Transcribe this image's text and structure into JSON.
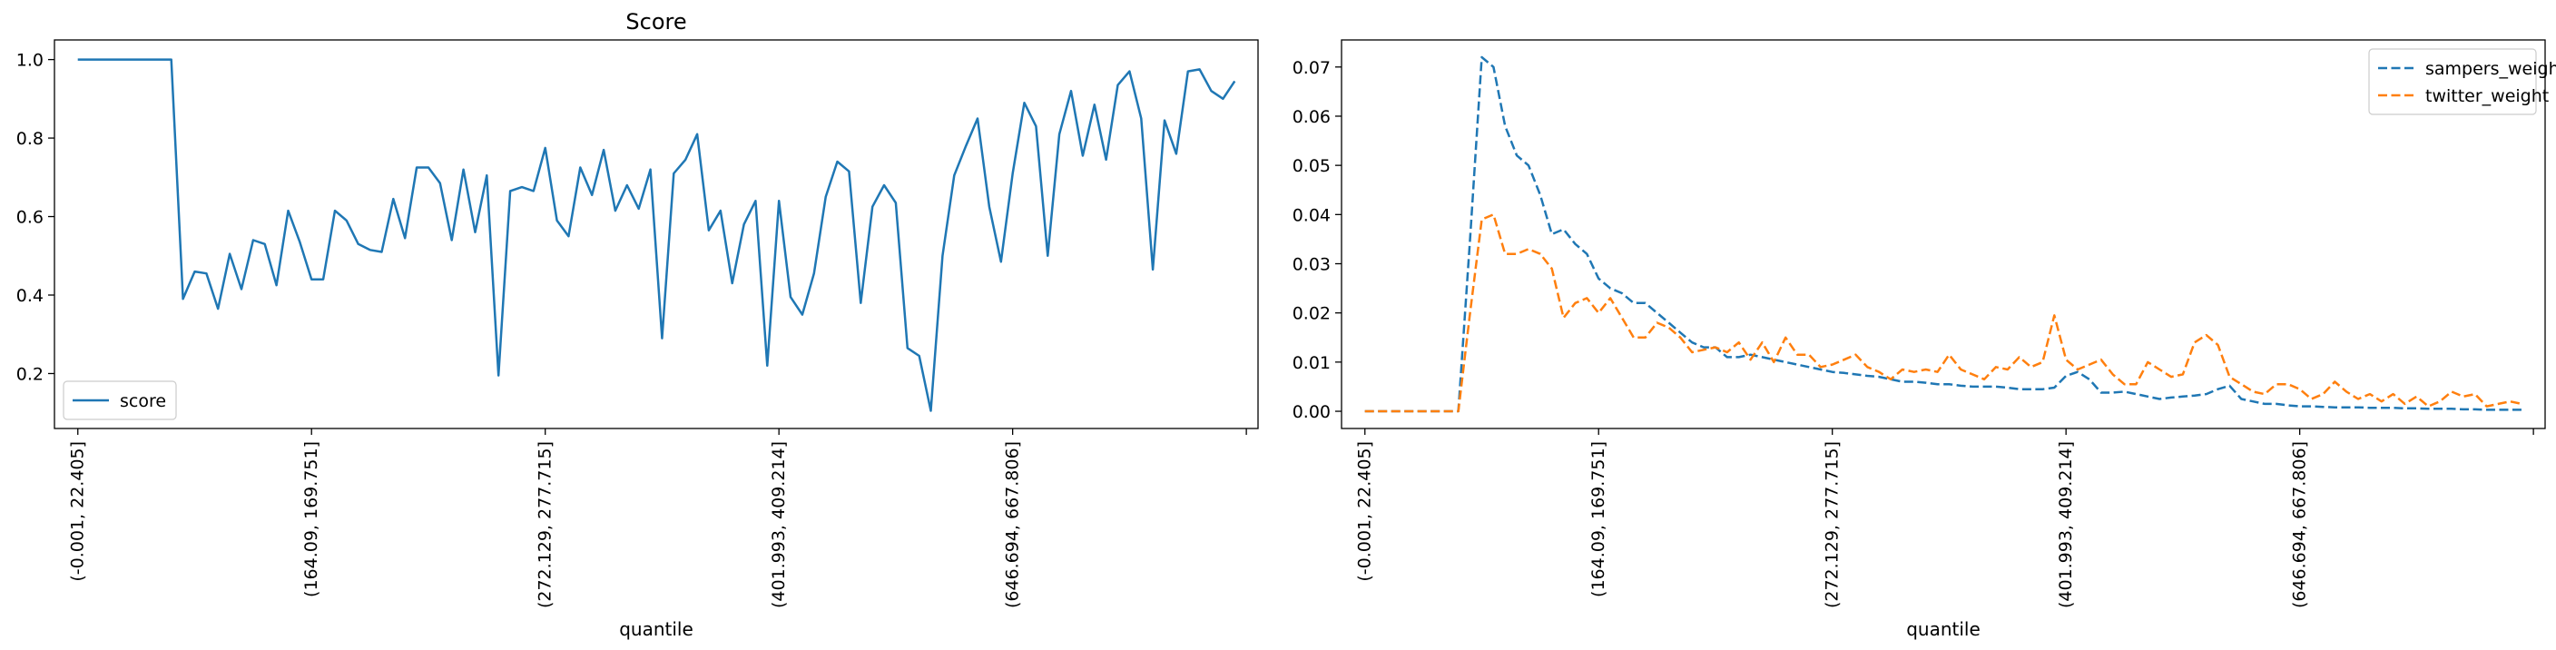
{
  "chart_data": [
    {
      "type": "line",
      "title": "Score",
      "xlabel": "quantile",
      "ylabel": "",
      "ylim": [
        0.06,
        1.05
      ],
      "yticks": [
        0.2,
        0.4,
        0.6,
        0.8,
        1.0
      ],
      "ytick_labels": [
        "0.2",
        "0.4",
        "0.6",
        "0.8",
        "1.0"
      ],
      "xlim": [
        -2,
        101
      ],
      "xticks": [
        0,
        20,
        40,
        60,
        80,
        100
      ],
      "xtick_labels": [
        "(-0.001, 22.405]",
        "(164.09, 169.751]",
        "(272.129, 277.715]",
        "(401.993, 409.214]",
        "(646.694, 667.806]",
        ""
      ],
      "legend_position": "lower-left",
      "series": [
        {
          "name": "score",
          "color": "#1f77b4",
          "style": "solid",
          "values": [
            1.0,
            1.0,
            1.0,
            1.0,
            1.0,
            1.0,
            1.0,
            1.0,
            1.0,
            0.39,
            0.46,
            0.455,
            0.365,
            0.505,
            0.415,
            0.54,
            0.53,
            0.425,
            0.615,
            0.535,
            0.44,
            0.44,
            0.615,
            0.59,
            0.53,
            0.515,
            0.51,
            0.645,
            0.545,
            0.725,
            0.725,
            0.685,
            0.54,
            0.72,
            0.56,
            0.705,
            0.195,
            0.665,
            0.675,
            0.665,
            0.775,
            0.59,
            0.55,
            0.725,
            0.655,
            0.77,
            0.615,
            0.68,
            0.62,
            0.72,
            0.29,
            0.71,
            0.745,
            0.81,
            0.565,
            0.615,
            0.43,
            0.58,
            0.64,
            0.22,
            0.64,
            0.395,
            0.35,
            0.455,
            0.65,
            0.74,
            0.715,
            0.38,
            0.625,
            0.68,
            0.635,
            0.265,
            0.245,
            0.105,
            0.5,
            0.705,
            0.78,
            0.85,
            0.625,
            0.485,
            0.71,
            0.89,
            0.83,
            0.5,
            0.81,
            0.92,
            0.755,
            0.885,
            0.745,
            0.935,
            0.97,
            0.85,
            0.465,
            0.845,
            0.76,
            0.97,
            0.975,
            0.92,
            0.9,
            0.945
          ]
        }
      ]
    },
    {
      "type": "line",
      "title": "",
      "xlabel": "quantile",
      "ylabel": "",
      "ylim": [
        -0.0035,
        0.0755
      ],
      "yticks": [
        0.0,
        0.01,
        0.02,
        0.03,
        0.04,
        0.05,
        0.06,
        0.07
      ],
      "ytick_labels": [
        "0.00",
        "0.01",
        "0.02",
        "0.03",
        "0.04",
        "0.05",
        "0.06",
        "0.07"
      ],
      "xlim": [
        -2,
        101
      ],
      "xticks": [
        0,
        20,
        40,
        60,
        80,
        100
      ],
      "xtick_labels": [
        "(-0.001, 22.405]",
        "(164.09, 169.751]",
        "(272.129, 277.715]",
        "(401.993, 409.214]",
        "(646.694, 667.806]",
        ""
      ],
      "legend_position": "upper-right",
      "series": [
        {
          "name": "sampers_weight",
          "color": "#1f77b4",
          "style": "dashed",
          "values": [
            0.0,
            0.0,
            0.0,
            0.0,
            0.0,
            0.0,
            0.0,
            0.0,
            0.0,
            0.035,
            0.072,
            0.07,
            0.058,
            0.052,
            0.05,
            0.044,
            0.036,
            0.037,
            0.034,
            0.032,
            0.027,
            0.025,
            0.024,
            0.022,
            0.022,
            0.02,
            0.018,
            0.016,
            0.014,
            0.013,
            0.013,
            0.011,
            0.011,
            0.0115,
            0.011,
            0.0105,
            0.01,
            0.0095,
            0.009,
            0.0085,
            0.008,
            0.0078,
            0.0075,
            0.0072,
            0.007,
            0.0065,
            0.006,
            0.006,
            0.0058,
            0.0055,
            0.0055,
            0.0052,
            0.005,
            0.005,
            0.005,
            0.0048,
            0.0045,
            0.0045,
            0.0045,
            0.0048,
            0.0072,
            0.008,
            0.0065,
            0.0038,
            0.0038,
            0.004,
            0.0035,
            0.003,
            0.0025,
            0.0028,
            0.003,
            0.0032,
            0.0035,
            0.0045,
            0.0052,
            0.0025,
            0.002,
            0.0015,
            0.0015,
            0.0012,
            0.001,
            0.001,
            0.0009,
            0.0008,
            0.0008,
            0.0008,
            0.0007,
            0.0007,
            0.0007,
            0.0006,
            0.0006,
            0.0005,
            0.0005,
            0.0005,
            0.0004,
            0.0004,
            0.0003,
            0.0003,
            0.0003,
            0.0003
          ]
        },
        {
          "name": "twitter_weight",
          "color": "#ff7f0e",
          "style": "dashed",
          "values": [
            0.0,
            0.0,
            0.0,
            0.0,
            0.0,
            0.0,
            0.0,
            0.0,
            0.0,
            0.02,
            0.039,
            0.04,
            0.032,
            0.032,
            0.033,
            0.032,
            0.029,
            0.019,
            0.022,
            0.023,
            0.02,
            0.023,
            0.019,
            0.015,
            0.015,
            0.018,
            0.017,
            0.015,
            0.012,
            0.0125,
            0.013,
            0.012,
            0.014,
            0.0105,
            0.014,
            0.01,
            0.015,
            0.0115,
            0.0115,
            0.009,
            0.0095,
            0.0105,
            0.0115,
            0.009,
            0.008,
            0.0065,
            0.0085,
            0.008,
            0.0085,
            0.008,
            0.0115,
            0.0085,
            0.0075,
            0.0065,
            0.009,
            0.0085,
            0.011,
            0.009,
            0.01,
            0.0195,
            0.0105,
            0.0085,
            0.0095,
            0.0105,
            0.0075,
            0.0055,
            0.0055,
            0.01,
            0.0085,
            0.007,
            0.0075,
            0.014,
            0.0155,
            0.0135,
            0.007,
            0.0055,
            0.004,
            0.0035,
            0.0055,
            0.0055,
            0.0045,
            0.0025,
            0.0035,
            0.006,
            0.004,
            0.0025,
            0.0035,
            0.002,
            0.0035,
            0.0015,
            0.003,
            0.001,
            0.002,
            0.004,
            0.003,
            0.0035,
            0.001,
            0.0015,
            0.002,
            0.0015
          ]
        }
      ]
    }
  ]
}
